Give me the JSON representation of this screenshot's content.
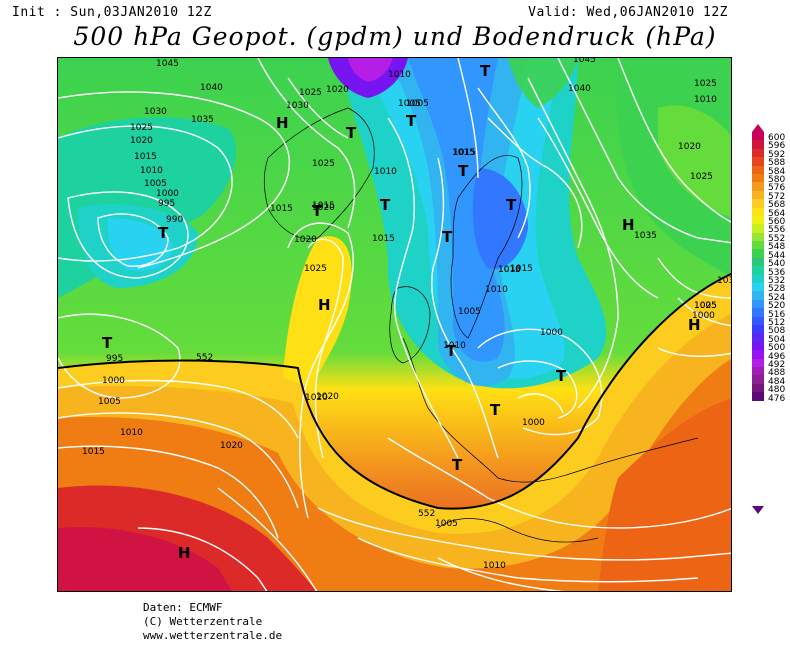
{
  "header": {
    "init": "Init : Sun,03JAN2010 12Z",
    "valid": "Valid: Wed,06JAN2010 12Z",
    "title": "500 hPa Geopot. (gpdm) und Bodendruck (hPa)"
  },
  "legend": {
    "levels": [
      "600",
      "596",
      "592",
      "588",
      "584",
      "580",
      "576",
      "572",
      "568",
      "564",
      "560",
      "556",
      "552",
      "548",
      "544",
      "540",
      "536",
      "532",
      "528",
      "524",
      "520",
      "516",
      "512",
      "508",
      "504",
      "500",
      "496",
      "492",
      "488",
      "484",
      "480",
      "476"
    ],
    "colors": [
      "#c8005a",
      "#d2143c",
      "#dc2a28",
      "#e6461e",
      "#ec6414",
      "#f07c14",
      "#f49a1e",
      "#f8b41e",
      "#fccc1e",
      "#ffe014",
      "#f0f014",
      "#c8f01e",
      "#96e632",
      "#64dc3c",
      "#3cd250",
      "#28c878",
      "#1ed2a0",
      "#1ed2c8",
      "#28d2f0",
      "#32b4f0",
      "#3296ff",
      "#3278ff",
      "#325aff",
      "#3c3cff",
      "#5a28f0",
      "#7814f0",
      "#9614f0",
      "#b41ee6",
      "#a01eb4",
      "#8c1e96",
      "#78147e",
      "#5a0a78"
    ]
  },
  "map_labels": {
    "isobars": [
      "1045",
      "1040",
      "1035",
      "1030",
      "1025",
      "1020",
      "1015",
      "1010",
      "1005",
      "1000",
      "995",
      "990",
      "1030",
      "1025",
      "1025",
      "1020",
      "1015",
      "1015",
      "1020",
      "1025",
      "1020",
      "1015",
      "1020",
      "1010",
      "1005",
      "1010",
      "1015",
      "1015",
      "1010",
      "1005",
      "1010",
      "1000",
      "1000",
      "995",
      "1000",
      "1005",
      "1010",
      "1015",
      "1020",
      "1020",
      "1015",
      "1005",
      "1010",
      "1040",
      "1045",
      "1015",
      "1010",
      "1020",
      "1025",
      "1035",
      "1025",
      "1030",
      "1025",
      "1000",
      "1005",
      "1010",
      "1005"
    ],
    "contour_552": "552",
    "pressure_centers": [
      "T",
      "T",
      "T",
      "T",
      "T",
      "T",
      "T",
      "T",
      "T",
      "T",
      "T",
      "T",
      "T",
      "T",
      "H",
      "H",
      "H",
      "H",
      "H",
      "H"
    ]
  },
  "credits": {
    "line1": "Daten: ECMWF",
    "line2": "(C) Wetterzentrale",
    "line3": "www.wetterzentrale.de"
  }
}
